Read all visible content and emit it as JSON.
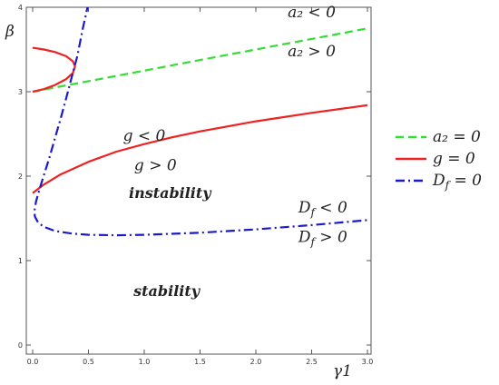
{
  "chart_data": {
    "type": "line",
    "xlabel": "γ1",
    "ylabel": "β",
    "xlim": [
      0,
      3.05
    ],
    "ylim": [
      -0.1,
      4.05
    ],
    "x_ticks": [
      "0.0",
      "0.5",
      "1.0",
      "1.5",
      "2.0",
      "2.5",
      "3.0"
    ],
    "x_tick_values": [
      0,
      0.5,
      1.0,
      1.5,
      2.0,
      2.5,
      3.0
    ],
    "y_ticks": [
      "0",
      "1",
      "2",
      "3",
      "4"
    ],
    "y_tick_values": [
      0,
      1,
      2,
      3,
      4
    ],
    "grid": false,
    "legend_position": "right",
    "series": [
      {
        "name": "a2 = 0",
        "legend_label": "a₂ = 0",
        "color": "#33dd33",
        "dash": "dashed",
        "x": [
          0.0,
          0.5,
          1.0,
          1.5,
          2.0,
          2.5,
          3.0
        ],
        "y": [
          3.0,
          3.125,
          3.25,
          3.375,
          3.5,
          3.625,
          3.75
        ]
      },
      {
        "name": "g = 0",
        "legend_label": "g = 0",
        "color": "#ee2222",
        "dash": "solid",
        "x": [
          0.0,
          0.1,
          0.25,
          0.5,
          0.75,
          1.0,
          1.25,
          1.5,
          2.0,
          2.5,
          3.0
        ],
        "y": [
          1.8,
          1.9,
          2.02,
          2.17,
          2.29,
          2.38,
          2.46,
          2.53,
          2.65,
          2.75,
          2.84
        ]
      },
      {
        "name": "g = 0 (upper branch)",
        "color": "#ee2222",
        "dash": "solid",
        "x": [
          0.0,
          0.1,
          0.2,
          0.3,
          0.36,
          0.38,
          0.36,
          0.3,
          0.2,
          0.1,
          0.0
        ],
        "y": [
          3.0,
          3.03,
          3.08,
          3.15,
          3.22,
          3.3,
          3.36,
          3.42,
          3.47,
          3.5,
          3.52
        ]
      },
      {
        "name": "Df = 0",
        "legend_label": "D_f = 0",
        "color": "#1a1acc",
        "dash": "dashdot",
        "x": [
          0.5,
          0.45,
          0.4,
          0.35,
          0.3,
          0.25,
          0.2,
          0.15,
          0.1,
          0.06,
          0.03,
          0.015,
          0.02,
          0.05,
          0.1,
          0.2,
          0.35,
          0.5,
          0.75,
          1.0,
          1.5,
          2.0,
          2.5,
          3.0
        ],
        "y": [
          4.05,
          3.75,
          3.42,
          3.17,
          2.92,
          2.68,
          2.45,
          2.22,
          2.01,
          1.84,
          1.7,
          1.58,
          1.52,
          1.45,
          1.4,
          1.35,
          1.32,
          1.305,
          1.3,
          1.305,
          1.33,
          1.37,
          1.42,
          1.48
        ]
      }
    ],
    "annotations": [
      {
        "text": "a₂ < 0",
        "x": 2.5,
        "y": 3.88
      },
      {
        "text": "a₂ > 0",
        "x": 2.5,
        "y": 3.42
      },
      {
        "text": "g < 0",
        "x": 1.0,
        "y": 2.42
      },
      {
        "text": "g > 0",
        "x": 1.1,
        "y": 2.07
      },
      {
        "text": "instability",
        "x": 1.23,
        "y": 1.74
      },
      {
        "text": "D_f < 0",
        "x": 2.6,
        "y": 1.57
      },
      {
        "text": "D_f > 0",
        "x": 2.6,
        "y": 1.22
      },
      {
        "text": "stability",
        "x": 1.2,
        "y": 0.58
      }
    ]
  }
}
